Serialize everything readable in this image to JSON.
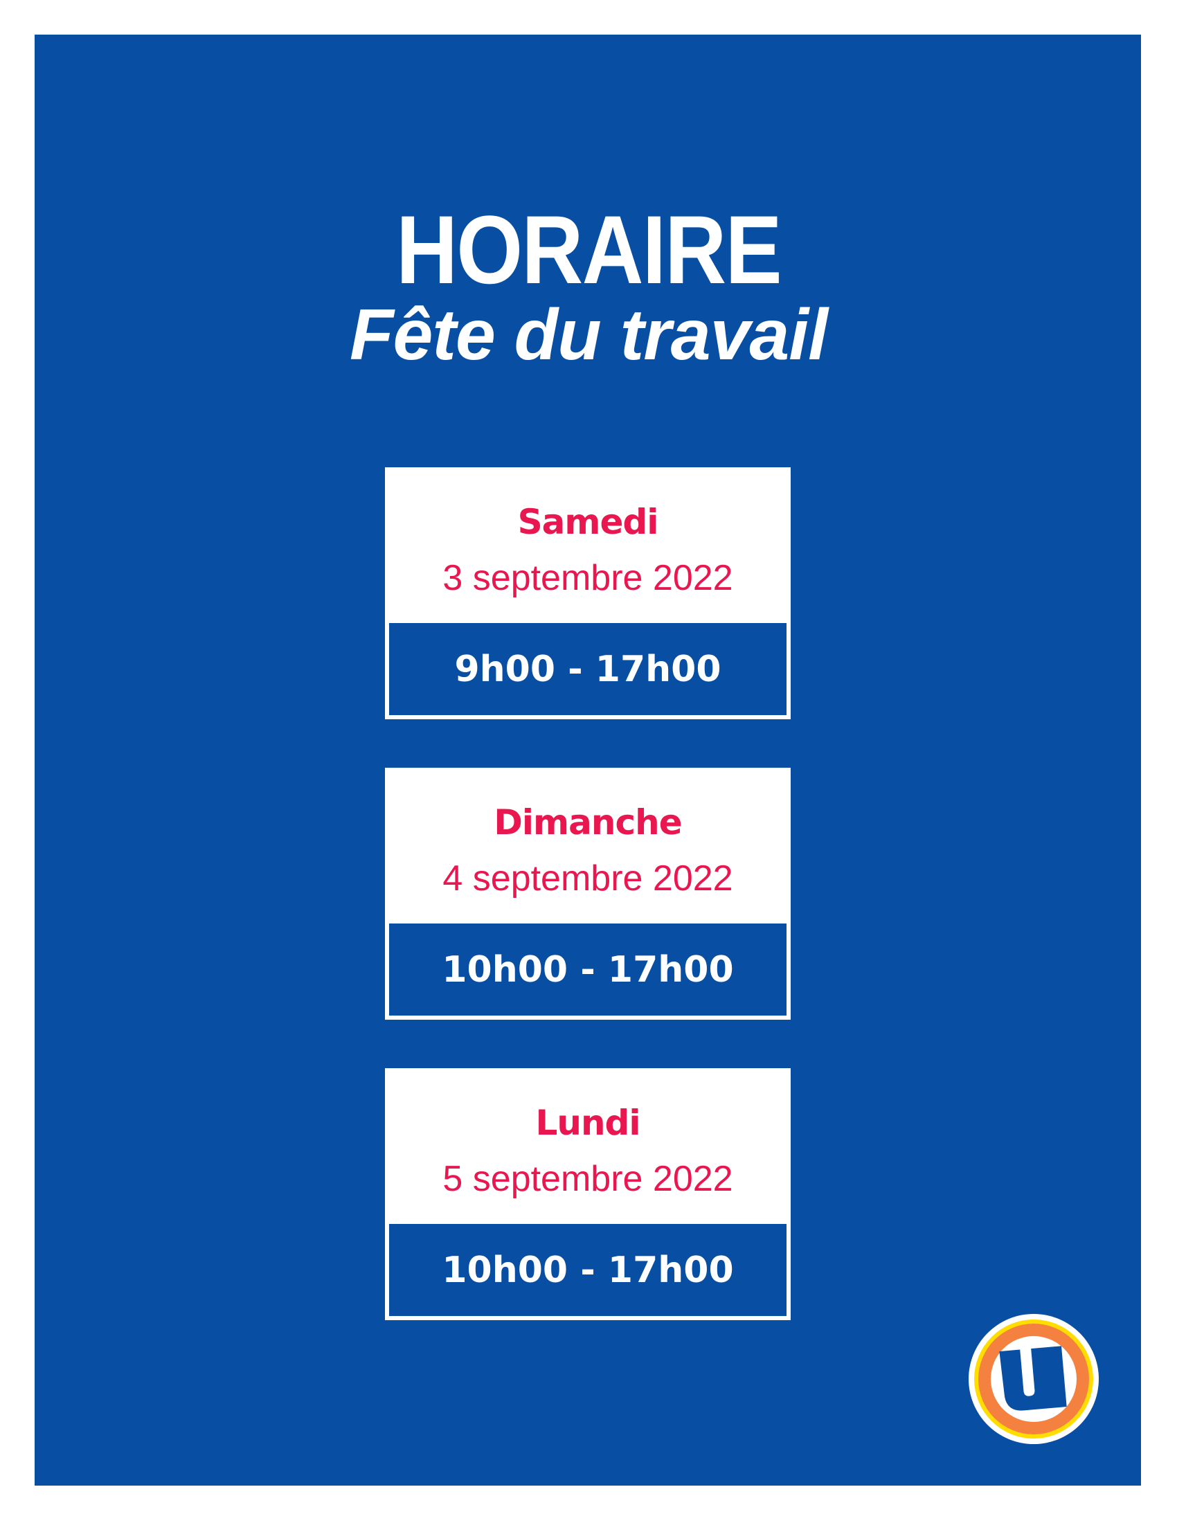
{
  "header": {
    "title": "HORAIRE",
    "subtitle": "Fête du travail"
  },
  "schedule": [
    {
      "day": "Samedi",
      "date": "3 septembre 2022",
      "hours": "9h00 - 17h00"
    },
    {
      "day": "Dimanche",
      "date": "4 septembre 2022",
      "hours": "10h00 - 17h00"
    },
    {
      "day": "Lundi",
      "date": "5 septembre 2022",
      "hours": "10h00 - 17h00"
    }
  ],
  "logo": {
    "letter": "U",
    "icon": "u-store-logo"
  },
  "colors": {
    "background": "#084fa3",
    "accent": "#e8174f",
    "logo_orange": "#f58140",
    "logo_yellow": "#ffdd00"
  }
}
